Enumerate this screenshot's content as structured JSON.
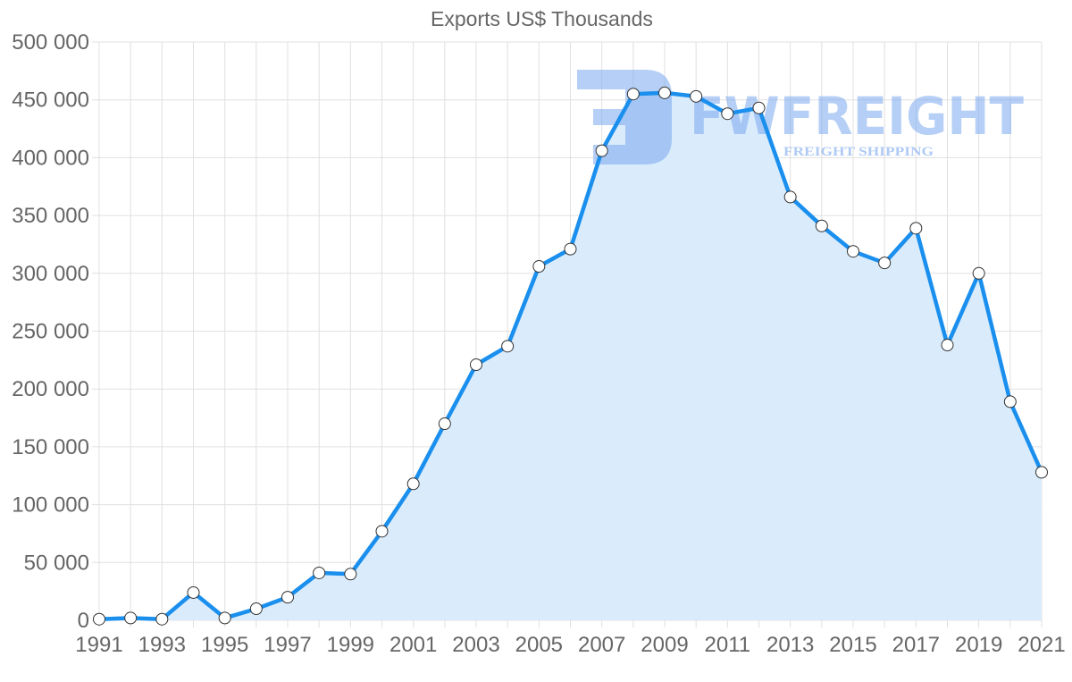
{
  "chart_data": {
    "type": "area",
    "title": "Exports US$ Thousands",
    "xlabel": "",
    "ylabel": "",
    "x": [
      1991,
      1992,
      1993,
      1994,
      1995,
      1996,
      1997,
      1998,
      1999,
      2000,
      2001,
      2002,
      2003,
      2004,
      2005,
      2006,
      2007,
      2008,
      2009,
      2010,
      2011,
      2012,
      2013,
      2014,
      2015,
      2016,
      2017,
      2018,
      2019,
      2020,
      2021
    ],
    "series": [
      {
        "name": "Exports US$ Thousands",
        "values": [
          1000,
          2000,
          1000,
          24000,
          2000,
          10000,
          20000,
          41000,
          40000,
          77000,
          118000,
          170000,
          221000,
          237000,
          306000,
          321000,
          406000,
          455000,
          456000,
          453000,
          438000,
          443000,
          366000,
          341000,
          319000,
          309000,
          339000,
          238000,
          300000,
          189000,
          128000
        ]
      }
    ],
    "ylim": [
      0,
      500000
    ],
    "xlim": [
      1991,
      2021
    ],
    "y_ticks": [
      0,
      50000,
      100000,
      150000,
      200000,
      250000,
      300000,
      350000,
      400000,
      450000,
      500000
    ],
    "y_tick_labels": [
      "0",
      "50 000",
      "100 000",
      "150 000",
      "200 000",
      "250 000",
      "300 000",
      "350 000",
      "400 000",
      "450 000",
      "500 000"
    ],
    "x_tick_labels": [
      "1991",
      "1993",
      "1995",
      "1997",
      "1999",
      "2001",
      "2003",
      "2005",
      "2007",
      "2009",
      "2011",
      "2013",
      "2015",
      "2017",
      "2019",
      "2021"
    ],
    "grid": true,
    "legend": "none",
    "colors": {
      "line": "#1a8fee",
      "fill": "#d8ebfc",
      "point_fill": "#ffffff",
      "point_stroke": "#333333",
      "grid": "#e0e0e0",
      "text": "#666666"
    }
  },
  "watermark": {
    "brand": "FWFREIGHT",
    "tagline": "FREIGHT SHIPPING",
    "color": "#7aa7ee"
  }
}
